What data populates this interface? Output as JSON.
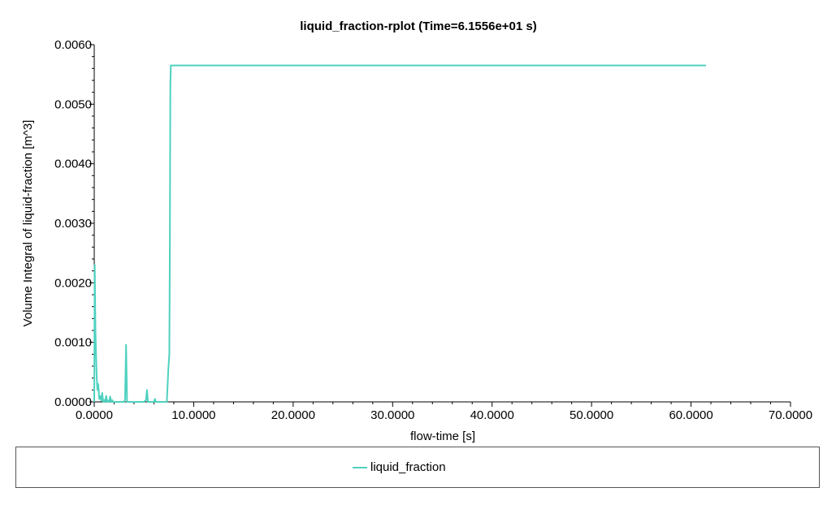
{
  "chart_data": {
    "type": "line",
    "title": "liquid_fraction-rplot (Time=6.1556e+01 s)",
    "xlabel": "flow-time [s]",
    "ylabel": "Volume Integral of liquid-fraction [m^3]",
    "xlim": [
      0,
      70
    ],
    "ylim": [
      0,
      0.006
    ],
    "x_ticks": [
      "0.0000",
      "10.0000",
      "20.0000",
      "30.0000",
      "40.0000",
      "50.0000",
      "60.0000",
      "70.0000"
    ],
    "y_ticks": [
      "0.0000",
      "0.0010",
      "0.0020",
      "0.0030",
      "0.0040",
      "0.0050",
      "0.0060"
    ],
    "x_tick_values": [
      0,
      10,
      20,
      30,
      40,
      50,
      60,
      70
    ],
    "y_tick_values": [
      0,
      0.001,
      0.002,
      0.003,
      0.004,
      0.005,
      0.006
    ],
    "grid": false,
    "legend_position": "bottom",
    "series": [
      {
        "name": "liquid_fraction",
        "color": "#4fd1c0",
        "x": [
          0,
          0.05,
          0.12,
          0.18,
          0.25,
          0.32,
          0.4,
          0.5,
          0.6,
          0.7,
          0.8,
          0.9,
          1.0,
          1.1,
          1.2,
          1.3,
          1.4,
          1.5,
          1.6,
          1.7,
          1.8,
          1.9,
          2.0,
          2.5,
          3.0,
          3.1,
          3.2,
          3.3,
          3.4,
          4.0,
          5.0,
          5.2,
          5.3,
          5.4,
          5.5,
          6.0,
          6.1,
          6.2,
          7.0,
          7.3,
          7.45,
          7.55,
          7.6,
          7.65,
          7.7,
          7.8,
          7.9,
          8.0,
          61.5
        ],
        "y": [
          0,
          0.0023,
          0.0012,
          0.0008,
          0.0004,
          0.0002,
          0.0003,
          5e-05,
          0.0001,
          2e-05,
          0.00015,
          0,
          3e-05,
          0,
          0.0001,
          0,
          2e-05,
          0,
          9e-05,
          0,
          3e-05,
          0,
          0,
          0,
          0,
          4e-05,
          0.00096,
          0,
          0,
          0,
          0,
          3e-05,
          0.0002,
          0,
          0,
          0,
          5e-05,
          0,
          0,
          0,
          0.00055,
          0.0008,
          0.0025,
          0.0053,
          0.00565,
          0.00565,
          0.00565,
          0.00565,
          0.00565
        ]
      }
    ]
  },
  "legend": {
    "label": "liquid_fraction",
    "color": "#4fd1c0"
  }
}
